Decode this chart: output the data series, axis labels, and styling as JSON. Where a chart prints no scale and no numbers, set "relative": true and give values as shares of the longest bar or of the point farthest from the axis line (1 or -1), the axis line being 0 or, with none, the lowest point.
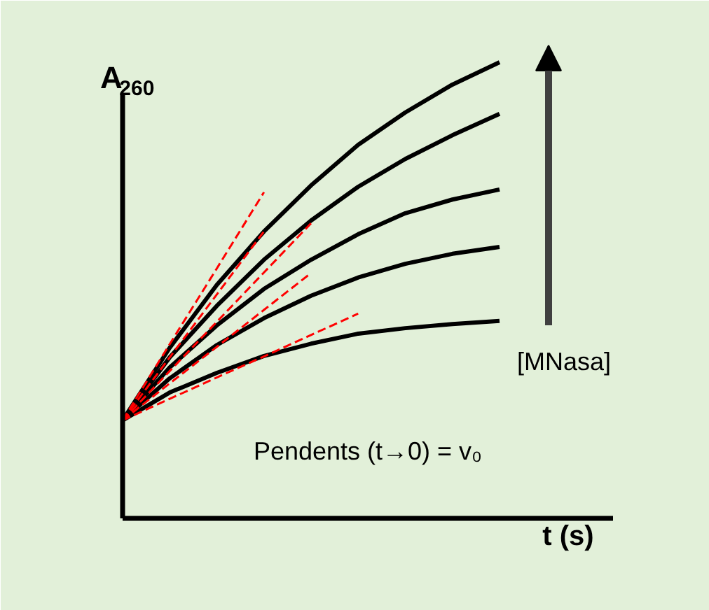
{
  "chart_data": {
    "type": "line",
    "relative": true,
    "ylabel": "A$_{260}$",
    "xlabel": "t (s)",
    "categories": [
      null,
      null,
      null,
      null,
      null,
      null,
      null,
      null,
      null
    ],
    "series": [
      {
        "color": "#000000",
        "values": [
          0.215,
          0.374,
          0.512,
          0.629,
          0.73,
          0.819,
          0.89,
          0.951,
          1
        ]
      },
      {
        "color": "#000000",
        "values": [
          0.215,
          0.353,
          0.466,
          0.567,
          0.653,
          0.727,
          0.788,
          0.84,
          0.887
        ]
      },
      {
        "color": "#000000",
        "values": [
          0.215,
          0.331,
          0.423,
          0.503,
          0.567,
          0.623,
          0.669,
          0.699,
          0.721
        ]
      },
      {
        "color": "#000000",
        "values": [
          0.215,
          0.307,
          0.38,
          0.439,
          0.488,
          0.528,
          0.558,
          0.58,
          0.595
        ]
      },
      {
        "color": "#000000",
        "values": [
          0.215,
          0.276,
          0.319,
          0.356,
          0.383,
          0.405,
          0.417,
          0.426,
          0.433
        ]
      },
      {
        "line_style": "dashed",
        "color": "#ff0000",
        "values": [
          0.215,
          0.382,
          0.548,
          0.715,
          null,
          null,
          null,
          null,
          null
        ]
      },
      {
        "line_style": "dashed",
        "color": "#ff0000",
        "values": [
          0.215,
          0.353,
          0.491,
          0.629,
          null,
          null,
          null,
          null,
          null
        ]
      },
      {
        "line_style": "dashed",
        "color": "#ff0000",
        "values": [
          0.215,
          0.323,
          0.431,
          0.539,
          0.647,
          null,
          null,
          null,
          null
        ]
      },
      {
        "line_style": "dashed",
        "color": "#ff0000",
        "values": [
          0.215,
          0.296,
          0.376,
          0.457,
          0.538,
          null,
          null,
          null,
          null
        ]
      },
      {
        "line_style": "dashed",
        "color": "#ff0000",
        "values": [
          0.215,
          0.262,
          0.309,
          0.355,
          0.402,
          0.449,
          null,
          null,
          null
        ]
      }
    ],
    "annotations": [
      "[MNasa]",
      "Pendents (t→0) = v₀"
    ]
  }
}
